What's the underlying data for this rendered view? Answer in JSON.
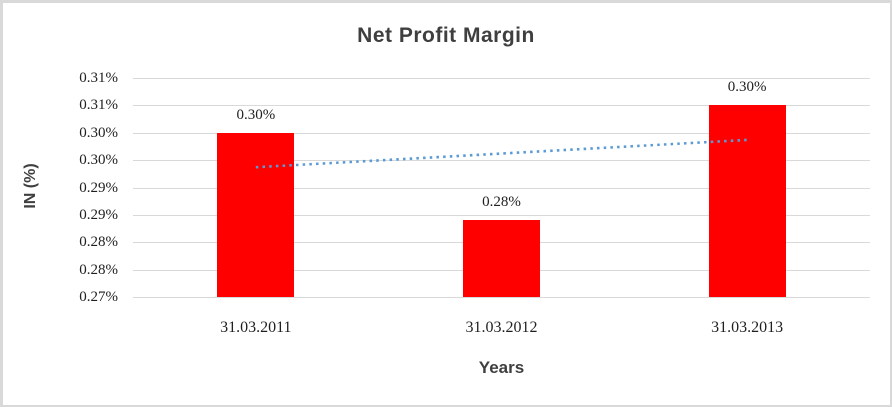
{
  "window": {
    "background_color": "#ffffff",
    "border_color": "#d9d9d9"
  },
  "chart_data": {
    "type": "bar",
    "title": "Net Profit Margin",
    "xlabel": "Years",
    "ylabel": "IN (%)",
    "categories": [
      "31.03.2011",
      "31.03.2012",
      "31.03.2013"
    ],
    "values": [
      0.3,
      0.284,
      0.305
    ],
    "data_labels": [
      "0.30%",
      "0.28%",
      "0.30%"
    ],
    "ylim": [
      0.27,
      0.31
    ],
    "y_tick_values": [
      0.31,
      0.305,
      0.3,
      0.295,
      0.29,
      0.285,
      0.28,
      0.275,
      0.27
    ],
    "y_tick_labels": [
      "0.31%",
      "0.31%",
      "0.30%",
      "0.30%",
      "0.29%",
      "0.29%",
      "0.28%",
      "0.28%",
      "0.27%"
    ],
    "grid": true,
    "legend_position": "none",
    "bar_color": "#ff0000",
    "gridline_color": "#d9d9d9",
    "title_color": "#3f3f3f",
    "tick_label_color": "#1f1f1f",
    "trendline": {
      "type": "linear",
      "style": "dotted",
      "color": "#5b9bd5",
      "start_value": 0.2937,
      "end_value": 0.2987
    }
  }
}
